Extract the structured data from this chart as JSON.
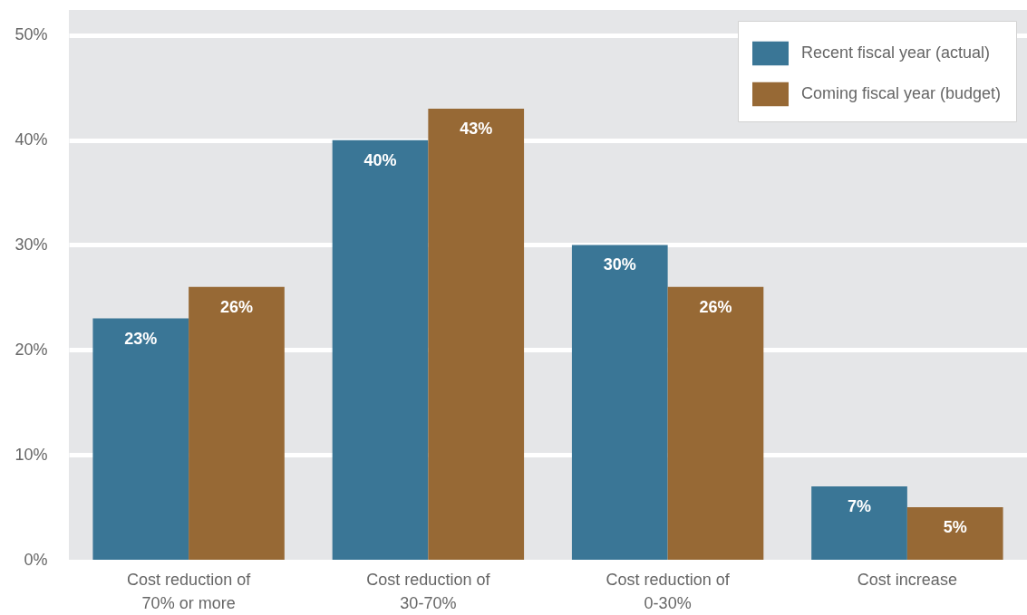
{
  "chart_data": {
    "type": "bar",
    "categories": [
      "Cost reduction of 70% or more",
      "Cost reduction of 30-70%",
      "Cost reduction of 0-30%",
      "Cost increase"
    ],
    "series": [
      {
        "name": "Recent fiscal year (actual)",
        "color": "#3a7696",
        "values": [
          23,
          40,
          30,
          7
        ],
        "value_labels": [
          "23%",
          "40%",
          "30%",
          "7%"
        ]
      },
      {
        "name": "Coming fiscal year (budget)",
        "color": "#976935",
        "values": [
          26,
          43,
          26,
          5
        ],
        "value_labels": [
          "26%",
          "43%",
          "26%",
          "5%"
        ]
      }
    ],
    "ylim": [
      0,
      52.4
    ],
    "yticks": [
      {
        "value": 0,
        "label": "0%"
      },
      {
        "value": 10,
        "label": "10%"
      },
      {
        "value": 20,
        "label": "20%"
      },
      {
        "value": 30,
        "label": "30%"
      },
      {
        "value": 40,
        "label": "40%"
      },
      {
        "value": 50,
        "label": "50%"
      }
    ],
    "grid": "y",
    "legend": "top right"
  }
}
